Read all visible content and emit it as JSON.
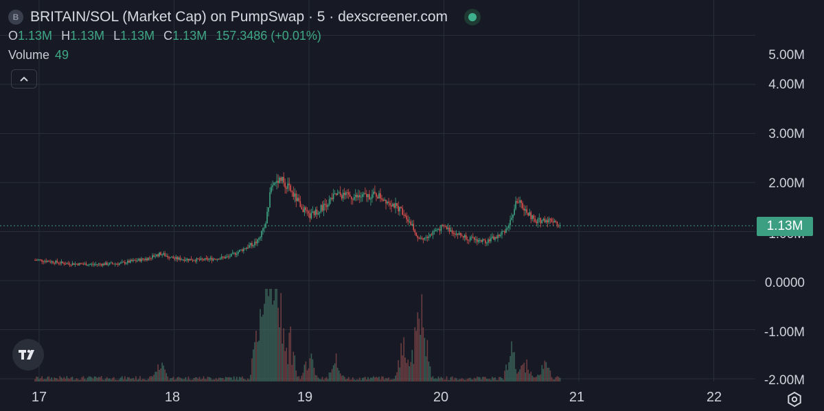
{
  "legend": {
    "symbol_letter": "B",
    "title": "BRITAIN/SOL (Market Cap) on PumpSwap · 5 · dexscreener.com",
    "ohlc": {
      "o_label": "O",
      "o_value": "1.13M",
      "h_label": "H",
      "h_value": "1.13M",
      "l_label": "L",
      "l_value": "1.13M",
      "c_label": "C",
      "c_value": "1.13M",
      "change": "157.3486 (+0.01%)"
    },
    "volume_label": "Volume",
    "volume_value": "49"
  },
  "price_axis": {
    "labels": [
      "5.00M",
      "4.00M",
      "3.00M",
      "2.00M",
      "1.00M",
      "0.0000",
      "-1.00M",
      "-2.00M"
    ],
    "current_price": "1.13M"
  },
  "time_axis": {
    "labels": [
      "17",
      "18",
      "19",
      "20",
      "21",
      "22"
    ]
  },
  "icons": {
    "collapse": "chevron-up-icon",
    "logo": "tradingview-logo-icon",
    "settings": "gear-icon"
  },
  "colors": {
    "background": "#171a24",
    "up": "#3fa886",
    "down": "#e0524f",
    "grid": "#2a2e3a",
    "price_line": "#3d9f82"
  },
  "chart_data": {
    "type": "line",
    "title": "BRITAIN/SOL (Market Cap) on PumpSwap · 5 · dexscreener.com",
    "x": [
      17.0,
      17.2,
      17.4,
      17.6,
      17.8,
      17.9,
      18.0,
      18.2,
      18.4,
      18.55,
      18.62,
      18.68,
      18.72,
      18.78,
      18.86,
      18.92,
      19.0,
      19.1,
      19.2,
      19.35,
      19.5,
      19.6,
      19.7,
      19.75,
      19.8,
      19.85,
      19.92,
      20.0,
      20.1,
      20.2,
      20.3,
      20.4,
      20.46,
      20.5,
      20.54,
      20.6,
      20.68,
      20.75,
      20.82,
      20.86
    ],
    "y": [
      0.42,
      0.35,
      0.33,
      0.35,
      0.45,
      0.55,
      0.45,
      0.42,
      0.48,
      0.7,
      0.8,
      1.2,
      1.9,
      2.1,
      1.85,
      1.6,
      1.3,
      1.5,
      1.75,
      1.7,
      1.75,
      1.6,
      1.4,
      1.2,
      0.9,
      0.85,
      1.0,
      1.1,
      0.95,
      0.85,
      0.8,
      0.9,
      1.05,
      1.25,
      1.65,
      1.45,
      1.2,
      1.25,
      1.22,
      1.13
    ],
    "series_name": "",
    "ylim": [
      -2.0,
      5.0
    ],
    "xlim": [
      16.93,
      22.35
    ],
    "y_unit": "M",
    "grid": true,
    "volume": {
      "x": [
        18.62,
        18.68,
        18.72,
        18.78,
        18.86,
        19.0,
        19.2,
        19.7,
        19.8,
        19.85,
        20.5,
        20.6,
        20.75,
        17.9
      ],
      "values": [
        0.55,
        0.75,
        0.95,
        0.85,
        0.45,
        0.3,
        0.25,
        0.4,
        0.55,
        0.6,
        0.3,
        0.2,
        0.18,
        0.22
      ]
    }
  }
}
